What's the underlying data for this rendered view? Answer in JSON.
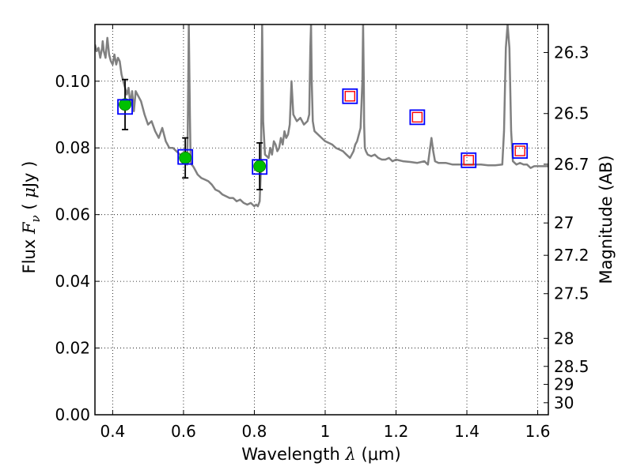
{
  "chart_data": {
    "type": "scatter",
    "title": "",
    "xlabel": "Wavelength  λ (μm)",
    "xlabel_parts": {
      "text": "Wavelength  ",
      "symbol": "λ",
      "unit": " (μm)"
    },
    "ylabel": "Flux  F_ν  ( μJy )",
    "ylabel_parts": {
      "text": "Flux  ",
      "symbol": "F",
      "subscript": "ν",
      "unit_pre": "  ( ",
      "mu": "μ",
      "unit": "Jy )"
    },
    "y2label": "Magnitude (AB)",
    "xlim": [
      0.35,
      1.63
    ],
    "ylim": [
      0.0,
      0.117
    ],
    "grid": true,
    "x_ticks": [
      {
        "value": 0.4,
        "label": "0.4"
      },
      {
        "value": 0.6,
        "label": "0.6"
      },
      {
        "value": 0.8,
        "label": "0.8"
      },
      {
        "value": 1.0,
        "label": "1"
      },
      {
        "value": 1.2,
        "label": "1.2"
      },
      {
        "value": 1.4,
        "label": "1.4"
      },
      {
        "value": 1.6,
        "label": "1.6"
      }
    ],
    "y_ticks": [
      {
        "value": 0.0,
        "label": "0.00"
      },
      {
        "value": 0.02,
        "label": "0.02"
      },
      {
        "value": 0.04,
        "label": "0.04"
      },
      {
        "value": 0.06,
        "label": "0.06"
      },
      {
        "value": 0.08,
        "label": "0.08"
      },
      {
        "value": 0.1,
        "label": "0.10"
      }
    ],
    "y2_ticks": [
      {
        "flux": 0.1086,
        "label": "26.3"
      },
      {
        "flux": 0.0903,
        "label": "26.5"
      },
      {
        "flux": 0.0751,
        "label": "26.7"
      },
      {
        "flux": 0.0575,
        "label": "27"
      },
      {
        "flux": 0.0478,
        "label": "27.2"
      },
      {
        "flux": 0.0363,
        "label": "27.5"
      },
      {
        "flux": 0.0229,
        "label": "28"
      },
      {
        "flux": 0.0145,
        "label": "28.5"
      },
      {
        "flux": 0.0091,
        "label": "29"
      },
      {
        "flux": 0.0036,
        "label": "30"
      }
    ],
    "series": [
      {
        "kind": "line",
        "color": "#808080",
        "x": [
          0.35,
          0.355,
          0.36,
          0.365,
          0.37,
          0.372,
          0.375,
          0.38,
          0.385,
          0.39,
          0.395,
          0.4,
          0.405,
          0.41,
          0.415,
          0.42,
          0.425,
          0.43,
          0.435,
          0.44,
          0.445,
          0.45,
          0.455,
          0.46,
          0.465,
          0.47,
          0.48,
          0.49,
          0.5,
          0.51,
          0.52,
          0.53,
          0.54,
          0.55,
          0.56,
          0.57,
          0.58,
          0.59,
          0.6,
          0.605,
          0.61,
          0.612,
          0.615,
          0.618,
          0.62,
          0.623,
          0.627,
          0.63,
          0.64,
          0.65,
          0.66,
          0.67,
          0.68,
          0.69,
          0.7,
          0.71,
          0.72,
          0.73,
          0.74,
          0.75,
          0.76,
          0.77,
          0.78,
          0.79,
          0.8,
          0.805,
          0.81,
          0.815,
          0.818,
          0.82,
          0.822,
          0.825,
          0.83,
          0.84,
          0.845,
          0.85,
          0.855,
          0.86,
          0.865,
          0.87,
          0.875,
          0.88,
          0.885,
          0.89,
          0.895,
          0.9,
          0.905,
          0.91,
          0.915,
          0.92,
          0.93,
          0.94,
          0.95,
          0.955,
          0.958,
          0.96,
          0.962,
          0.965,
          0.968,
          0.97,
          0.98,
          0.99,
          1.0,
          1.01,
          1.02,
          1.03,
          1.04,
          1.05,
          1.06,
          1.07,
          1.08,
          1.085,
          1.09,
          1.1,
          1.105,
          1.107,
          1.109,
          1.11,
          1.112,
          1.115,
          1.12,
          1.13,
          1.14,
          1.15,
          1.16,
          1.17,
          1.18,
          1.19,
          1.2,
          1.22,
          1.24,
          1.26,
          1.28,
          1.29,
          1.295,
          1.3,
          1.305,
          1.31,
          1.32,
          1.34,
          1.36,
          1.38,
          1.4,
          1.42,
          1.44,
          1.46,
          1.48,
          1.5,
          1.505,
          1.51,
          1.515,
          1.52,
          1.525,
          1.53,
          1.54,
          1.55,
          1.56,
          1.57,
          1.58,
          1.59,
          1.6,
          1.61,
          1.62,
          1.63
        ],
        "y": [
          0.111,
          0.109,
          0.11,
          0.107,
          0.11,
          0.112,
          0.109,
          0.107,
          0.113,
          0.108,
          0.106,
          0.105,
          0.108,
          0.105,
          0.107,
          0.106,
          0.102,
          0.1,
          0.098,
          0.096,
          0.098,
          0.093,
          0.097,
          0.091,
          0.097,
          0.096,
          0.094,
          0.09,
          0.087,
          0.088,
          0.085,
          0.083,
          0.086,
          0.082,
          0.08,
          0.08,
          0.079,
          0.078,
          0.077,
          0.0765,
          0.075,
          0.085,
          0.117,
          0.09,
          0.076,
          0.075,
          0.0745,
          0.074,
          0.072,
          0.071,
          0.0705,
          0.07,
          0.069,
          0.0675,
          0.067,
          0.066,
          0.0655,
          0.065,
          0.065,
          0.064,
          0.0645,
          0.0635,
          0.063,
          0.0635,
          0.0625,
          0.063,
          0.0625,
          0.064,
          0.072,
          0.09,
          0.117,
          0.088,
          0.078,
          0.077,
          0.08,
          0.078,
          0.082,
          0.081,
          0.079,
          0.08,
          0.083,
          0.081,
          0.085,
          0.083,
          0.084,
          0.087,
          0.1,
          0.09,
          0.089,
          0.088,
          0.089,
          0.087,
          0.088,
          0.09,
          0.11,
          0.117,
          0.1,
          0.088,
          0.086,
          0.085,
          0.084,
          0.083,
          0.082,
          0.0815,
          0.081,
          0.08,
          0.0795,
          0.079,
          0.078,
          0.077,
          0.079,
          0.081,
          0.082,
          0.086,
          0.1,
          0.117,
          0.1,
          0.087,
          0.08,
          0.079,
          0.078,
          0.0775,
          0.078,
          0.077,
          0.0765,
          0.0765,
          0.077,
          0.076,
          0.0765,
          0.076,
          0.0758,
          0.0755,
          0.076,
          0.075,
          0.079,
          0.083,
          0.079,
          0.076,
          0.0755,
          0.0755,
          0.075,
          0.075,
          0.075,
          0.075,
          0.075,
          0.0748,
          0.0748,
          0.075,
          0.085,
          0.11,
          0.117,
          0.11,
          0.085,
          0.076,
          0.075,
          0.0755,
          0.075,
          0.075,
          0.074,
          0.0745,
          0.0745,
          0.0745,
          0.0745,
          0.0745
        ]
      },
      {
        "kind": "filled_circles_with_errorbars",
        "color": "#00c000",
        "x": [
          0.435,
          0.605,
          0.815
        ],
        "y": [
          0.093,
          0.077,
          0.0745
        ],
        "yerr": [
          0.0075,
          0.006,
          0.007
        ]
      },
      {
        "kind": "blue_open_squares",
        "color": "#0000ff",
        "x": [
          0.435,
          0.605,
          0.815,
          1.07,
          1.26,
          1.405,
          1.55
        ],
        "y": [
          0.0923,
          0.0773,
          0.0743,
          0.0955,
          0.0892,
          0.0763,
          0.0791
        ]
      },
      {
        "kind": "red_open_squares",
        "color": "#ff0000",
        "x": [
          1.07,
          1.26,
          1.405,
          1.55
        ],
        "y": [
          0.0955,
          0.0892,
          0.0763,
          0.0791
        ]
      }
    ]
  }
}
